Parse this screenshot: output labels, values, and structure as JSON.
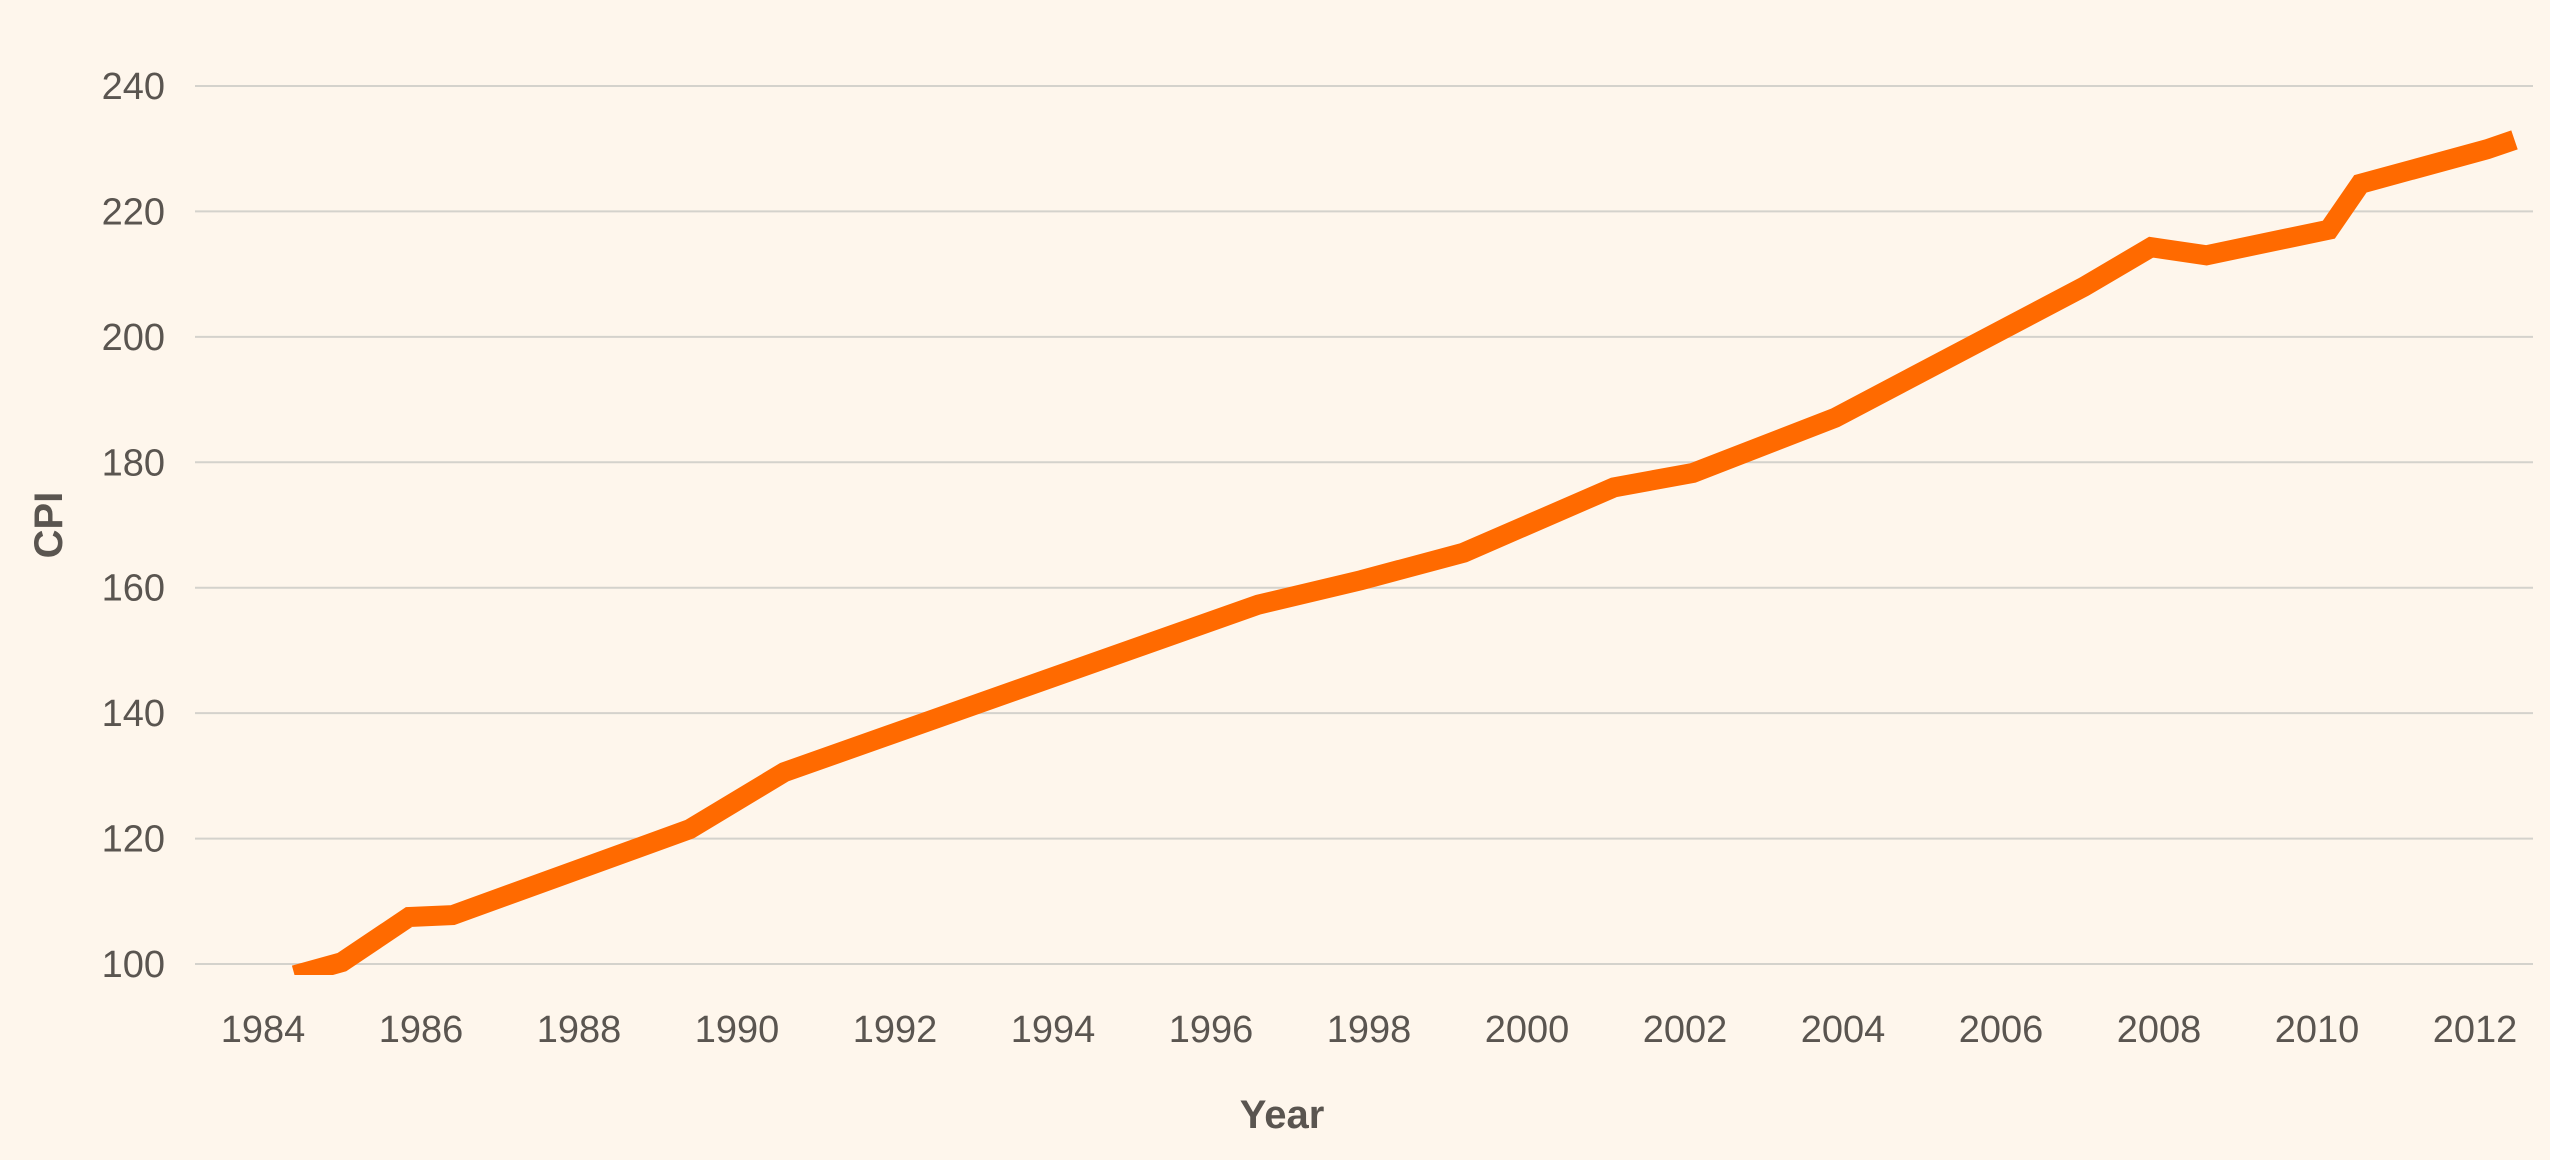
{
  "chart_data": {
    "type": "line",
    "title": "",
    "xlabel": "Year",
    "ylabel": "CPI",
    "xlim": [
      1983.4,
      2012.7
    ],
    "ylim": [
      100,
      240
    ],
    "grid": true,
    "x_ticks": [
      1984,
      1986,
      1988,
      1990,
      1992,
      1994,
      1996,
      1998,
      2000,
      2002,
      2004,
      2006,
      2008,
      2010,
      2012
    ],
    "y_ticks": [
      100,
      120,
      140,
      160,
      180,
      200,
      220,
      240
    ],
    "series": [
      {
        "name": "CPI",
        "color": "#ff6a00",
        "x": [
          1984.4,
          1985.0,
          1985.85,
          1986.4,
          1989.4,
          1990.6,
          1996.6,
          1997.9,
          1999.2,
          2001.1,
          2002.1,
          2003.9,
          2007.05,
          2007.9,
          2008.6,
          2010.15,
          2010.55,
          2012.15,
          2012.5
        ],
        "y": [
          98.2,
          100.3,
          107.5,
          107.8,
          121.5,
          130.6,
          157.3,
          161.2,
          165.6,
          176.0,
          178.3,
          187.1,
          208.0,
          214.3,
          213.0,
          217.1,
          224.4,
          229.9,
          231.4
        ]
      }
    ],
    "colors": {
      "background": "#fef6ec",
      "grid": "#d4d2cc",
      "text": "#5a5550"
    }
  }
}
